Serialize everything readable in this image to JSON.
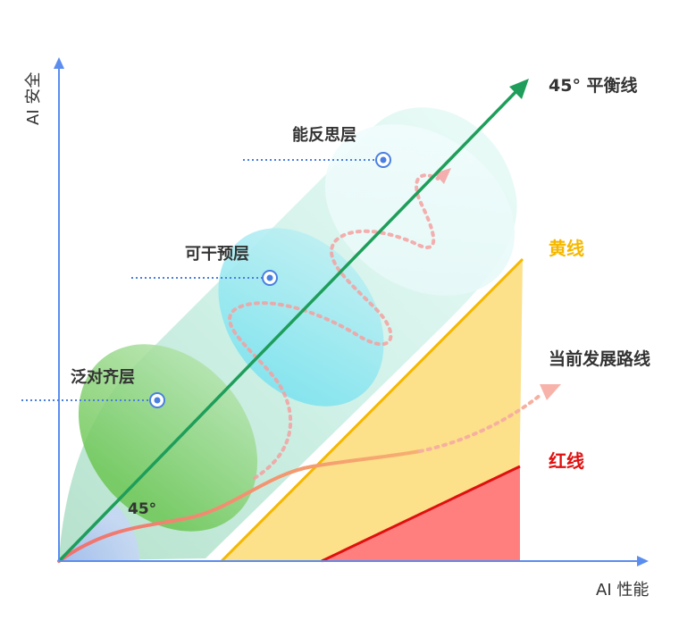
{
  "axes": {
    "y_label": "AI 安全",
    "x_label": "AI 性能"
  },
  "layers": [
    {
      "label": "泛对齐层"
    },
    {
      "label": "可干预层"
    },
    {
      "label": "能反思层"
    }
  ],
  "lines": {
    "balance": "45° 平衡线",
    "yellow": "黄线",
    "current": "当前发展路线",
    "red": "红线"
  },
  "angle_label": "45°",
  "colors": {
    "axis": "#5b8def",
    "balance_line": "#1e9e5a",
    "yellow_line": "#f5b800",
    "yellow_fill": "#fde08a",
    "red_line": "#e01010",
    "red_fill": "#ff7f7f",
    "path": "#f08080",
    "label_yellow": "#f5b800",
    "label_red": "#e01010"
  },
  "icons": [
    "target-icon",
    "arrowhead-icon"
  ]
}
